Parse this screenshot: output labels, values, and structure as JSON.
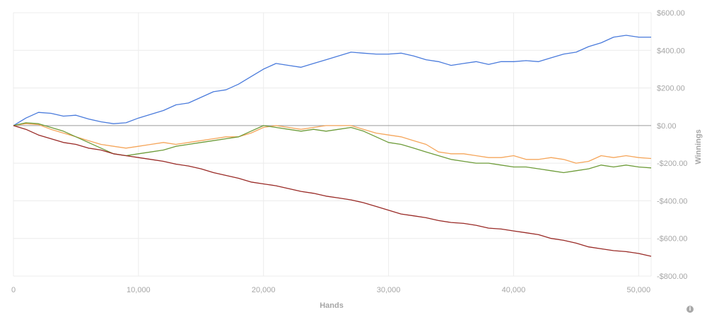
{
  "chart_data": {
    "type": "line",
    "xlabel": "Hands",
    "ylabel": "Winnings",
    "xlim": [
      0,
      51000
    ],
    "ylim": [
      -800,
      600
    ],
    "x_ticks": [
      0,
      10000,
      20000,
      30000,
      40000,
      50000
    ],
    "x_tick_labels": [
      "0",
      "10,000",
      "20,000",
      "30,000",
      "40,000",
      "50,000"
    ],
    "y_ticks": [
      600,
      400,
      200,
      0,
      -200,
      -400,
      -600,
      -800
    ],
    "y_tick_labels": [
      "$600.00",
      "$400.00",
      "$200.00",
      "$0.00",
      "-$200.00",
      "-$400.00",
      "-$600.00",
      "-$800.00"
    ],
    "grid": true,
    "series": [
      {
        "color": "#4a7bdc",
        "x": [
          0,
          1000,
          2000,
          3000,
          4000,
          5000,
          6000,
          7000,
          8000,
          9000,
          10000,
          11000,
          12000,
          13000,
          14000,
          15000,
          16000,
          17000,
          18000,
          19000,
          20000,
          21000,
          22000,
          23000,
          24000,
          25000,
          26000,
          27000,
          28000,
          29000,
          30000,
          31000,
          32000,
          33000,
          34000,
          35000,
          36000,
          37000,
          38000,
          39000,
          40000,
          41000,
          42000,
          43000,
          44000,
          45000,
          46000,
          47000,
          48000,
          49000,
          50000,
          51000
        ],
        "y": [
          0,
          40,
          70,
          65,
          50,
          55,
          35,
          20,
          10,
          15,
          40,
          60,
          80,
          110,
          120,
          150,
          180,
          190,
          220,
          260,
          300,
          330,
          320,
          310,
          330,
          350,
          370,
          390,
          385,
          380,
          380,
          385,
          370,
          350,
          340,
          320,
          330,
          340,
          325,
          340,
          340,
          345,
          340,
          360,
          380,
          390,
          420,
          440,
          470,
          480,
          470,
          470
        ]
      },
      {
        "color": "#f5a65b",
        "x": [
          0,
          1000,
          2000,
          3000,
          4000,
          5000,
          6000,
          7000,
          8000,
          9000,
          10000,
          11000,
          12000,
          13000,
          14000,
          15000,
          16000,
          17000,
          18000,
          19000,
          20000,
          21000,
          22000,
          23000,
          24000,
          25000,
          26000,
          27000,
          28000,
          29000,
          30000,
          31000,
          32000,
          33000,
          34000,
          35000,
          36000,
          37000,
          38000,
          39000,
          40000,
          41000,
          42000,
          43000,
          44000,
          45000,
          46000,
          47000,
          48000,
          49000,
          50000,
          51000
        ],
        "y": [
          0,
          10,
          5,
          -20,
          -40,
          -60,
          -80,
          -100,
          -110,
          -120,
          -110,
          -100,
          -90,
          -100,
          -90,
          -80,
          -70,
          -60,
          -60,
          -40,
          -10,
          0,
          -10,
          -20,
          -10,
          0,
          0,
          0,
          -20,
          -40,
          -50,
          -60,
          -80,
          -100,
          -140,
          -150,
          -150,
          -160,
          -170,
          -170,
          -160,
          -180,
          -180,
          -170,
          -180,
          -200,
          -190,
          -160,
          -170,
          -160,
          -170,
          -175
        ]
      },
      {
        "color": "#6e9c3a",
        "x": [
          0,
          1000,
          2000,
          3000,
          4000,
          5000,
          6000,
          7000,
          8000,
          9000,
          10000,
          11000,
          12000,
          13000,
          14000,
          15000,
          16000,
          17000,
          18000,
          19000,
          20000,
          21000,
          22000,
          23000,
          24000,
          25000,
          26000,
          27000,
          28000,
          29000,
          30000,
          31000,
          32000,
          33000,
          34000,
          35000,
          36000,
          37000,
          38000,
          39000,
          40000,
          41000,
          42000,
          43000,
          44000,
          45000,
          46000,
          47000,
          48000,
          49000,
          50000,
          51000
        ],
        "y": [
          0,
          15,
          10,
          -10,
          -30,
          -60,
          -90,
          -120,
          -150,
          -160,
          -150,
          -140,
          -130,
          -110,
          -100,
          -90,
          -80,
          -70,
          -60,
          -30,
          0,
          -10,
          -20,
          -30,
          -20,
          -30,
          -20,
          -10,
          -30,
          -60,
          -90,
          -100,
          -120,
          -140,
          -160,
          -180,
          -190,
          -200,
          -200,
          -210,
          -220,
          -220,
          -230,
          -240,
          -250,
          -240,
          -230,
          -210,
          -220,
          -210,
          -220,
          -225
        ]
      },
      {
        "color": "#992a26",
        "x": [
          0,
          1000,
          2000,
          3000,
          4000,
          5000,
          6000,
          7000,
          8000,
          9000,
          10000,
          11000,
          12000,
          13000,
          14000,
          15000,
          16000,
          17000,
          18000,
          19000,
          20000,
          21000,
          22000,
          23000,
          24000,
          25000,
          26000,
          27000,
          28000,
          29000,
          30000,
          31000,
          32000,
          33000,
          34000,
          35000,
          36000,
          37000,
          38000,
          39000,
          40000,
          41000,
          42000,
          43000,
          44000,
          45000,
          46000,
          47000,
          48000,
          49000,
          50000,
          51000
        ],
        "y": [
          0,
          -20,
          -50,
          -70,
          -90,
          -100,
          -120,
          -130,
          -150,
          -160,
          -170,
          -180,
          -190,
          -205,
          -215,
          -230,
          -250,
          -265,
          -280,
          -300,
          -310,
          -320,
          -335,
          -350,
          -360,
          -375,
          -385,
          -395,
          -410,
          -430,
          -450,
          -470,
          -480,
          -490,
          -505,
          -515,
          -520,
          -530,
          -545,
          -550,
          -560,
          -570,
          -580,
          -600,
          -610,
          -625,
          -645,
          -655,
          -665,
          -670,
          -680,
          -695
        ]
      }
    ]
  },
  "footer": {
    "info_icon": "info-icon"
  }
}
